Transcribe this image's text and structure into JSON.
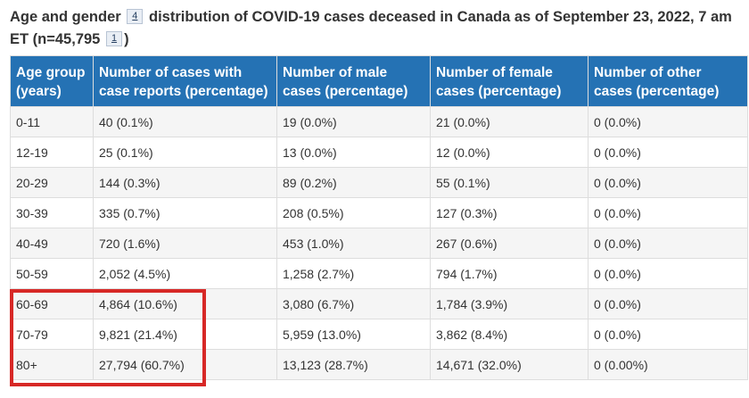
{
  "caption": {
    "part1": "Age and gender",
    "footnote_gender": "4",
    "part2": "distribution of COVID-19 cases deceased in Canada as of September 23, 2022, 7 am ET (n=45,795",
    "footnote_n": "1",
    "part3": ")"
  },
  "table": {
    "headers": [
      "Age group (years)",
      "Number of cases with case reports (percentage)",
      "Number of male cases (percentage)",
      "Number of female cases (percentage)",
      "Number of other cases (percentage)"
    ],
    "rows": [
      [
        "0-11",
        "40 (0.1%)",
        "19 (0.0%)",
        "21 (0.0%)",
        "0 (0.0%)"
      ],
      [
        "12-19",
        "25 (0.1%)",
        "13 (0.0%)",
        "12 (0.0%)",
        "0 (0.0%)"
      ],
      [
        "20-29",
        "144 (0.3%)",
        "89 (0.2%)",
        "55 (0.1%)",
        "0 (0.0%)"
      ],
      [
        "30-39",
        "335 (0.7%)",
        "208 (0.5%)",
        "127 (0.3%)",
        "0 (0.0%)"
      ],
      [
        "40-49",
        "720 (1.6%)",
        "453 (1.0%)",
        "267 (0.6%)",
        "0 (0.0%)"
      ],
      [
        "50-59",
        "2,052 (4.5%)",
        "1,258 (2.7%)",
        "794 (1.7%)",
        "0 (0.0%)"
      ],
      [
        "60-69",
        "4,864 (10.6%)",
        "3,080 (6.7%)",
        "1,784 (3.9%)",
        "0 (0.0%)"
      ],
      [
        "70-79",
        "9,821 (21.4%)",
        "5,959 (13.0%)",
        "3,862 (8.4%)",
        "0 (0.0%)"
      ],
      [
        "80+",
        "27,794 (60.7%)",
        "13,123 (28.7%)",
        "14,671 (32.0%)",
        "0 (0.00%)"
      ]
    ]
  },
  "highlight_color": "#d72826",
  "header_color": "#2572b4"
}
